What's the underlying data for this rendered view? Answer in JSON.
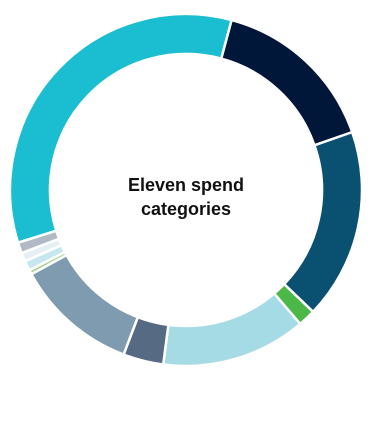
{
  "chart_data": {
    "type": "pie",
    "variant": "donut",
    "center_label": "Eleven spend categories",
    "start_angle_deg": 15,
    "direction": "clockwise",
    "segments": [
      {
        "value": 15.5,
        "color": "#00173a"
      },
      {
        "value": 17.5,
        "color": "#0a5171"
      },
      {
        "value": 1.6,
        "color": "#4cb848"
      },
      {
        "value": 13.3,
        "color": "#a5dbe5"
      },
      {
        "value": 3.7,
        "color": "#566b83"
      },
      {
        "value": 11.3,
        "color": "#7f9bb0"
      },
      {
        "value": 0.4,
        "color": "#a7d28f"
      },
      {
        "value": 0.9,
        "color": "#c5e7ee"
      },
      {
        "value": 0.8,
        "color": "#e4f0f4"
      },
      {
        "value": 1.0,
        "color": "#b1b9c7"
      },
      {
        "value": 34.0,
        "color": "#1bbdd1"
      }
    ]
  }
}
